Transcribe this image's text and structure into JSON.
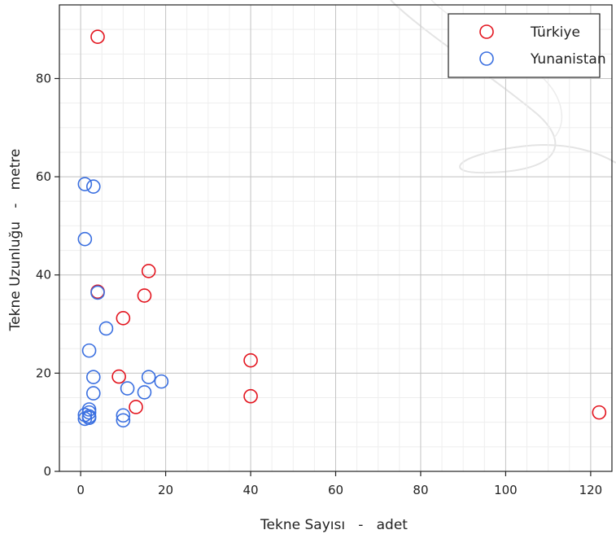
{
  "chart_data": {
    "type": "scatter",
    "xlabel": "Tekne Sayısı   -   adet",
    "ylabel": "Tekne Uzunluğu   -   metre",
    "xlim": [
      -5,
      125
    ],
    "ylim": [
      0,
      95
    ],
    "xticks": [
      0,
      20,
      40,
      60,
      80,
      100,
      120
    ],
    "yticks": [
      0,
      20,
      40,
      60,
      80
    ],
    "grid": true,
    "legend_position": "top-right",
    "series": [
      {
        "name": "Türkiye",
        "color": "#e3141e",
        "points": [
          {
            "x": 4,
            "y": 88.5
          },
          {
            "x": 16,
            "y": 40.8
          },
          {
            "x": 4,
            "y": 36.6
          },
          {
            "x": 15,
            "y": 35.8
          },
          {
            "x": 10,
            "y": 31.2
          },
          {
            "x": 40,
            "y": 22.6
          },
          {
            "x": 9,
            "y": 19.3
          },
          {
            "x": 40,
            "y": 15.3
          },
          {
            "x": 13,
            "y": 13.1
          },
          {
            "x": 122,
            "y": 12.0
          }
        ]
      },
      {
        "name": "Yunanistan",
        "color": "#3a6fe0",
        "points": [
          {
            "x": 1,
            "y": 58.5
          },
          {
            "x": 3,
            "y": 58.0
          },
          {
            "x": 1,
            "y": 47.3
          },
          {
            "x": 4,
            "y": 36.4
          },
          {
            "x": 6,
            "y": 29.1
          },
          {
            "x": 2,
            "y": 24.6
          },
          {
            "x": 3,
            "y": 19.2
          },
          {
            "x": 16,
            "y": 19.2
          },
          {
            "x": 19,
            "y": 18.3
          },
          {
            "x": 11,
            "y": 16.9
          },
          {
            "x": 15,
            "y": 16.1
          },
          {
            "x": 3,
            "y": 15.9
          },
          {
            "x": 2,
            "y": 12.6
          },
          {
            "x": 2,
            "y": 12.0
          },
          {
            "x": 1,
            "y": 11.5
          },
          {
            "x": 2,
            "y": 11.2
          },
          {
            "x": 10,
            "y": 11.4
          },
          {
            "x": 1,
            "y": 10.7
          },
          {
            "x": 2,
            "y": 10.9
          },
          {
            "x": 10,
            "y": 10.4
          }
        ]
      }
    ]
  }
}
